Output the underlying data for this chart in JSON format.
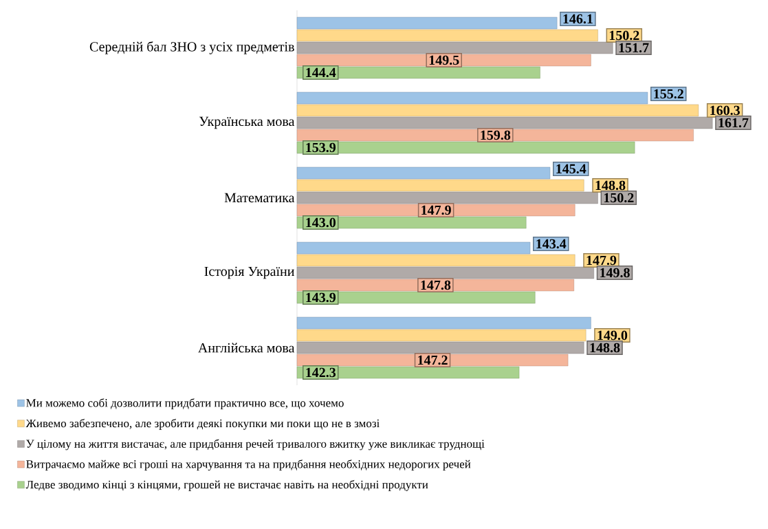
{
  "chart_data": {
    "type": "bar",
    "orientation": "horizontal",
    "categories": [
      "Середній бал ЗНО з усіх предметів",
      "Українська мова",
      "Математика",
      "Історія України",
      "Англійська мова"
    ],
    "series": [
      {
        "name": "Ми можемо собі дозволити придбати практично все, що хочемо",
        "color": "#9dc3e6",
        "values": [
          146.1,
          155.2,
          145.4,
          143.4,
          149.5
        ],
        "value_labels": [
          "146.1",
          "155.2",
          "145.4",
          "143.4",
          null
        ]
      },
      {
        "name": "Живемо забезпечено, але зробити деякі покупки ми поки що не в змозі",
        "color": "#ffd98a",
        "values": [
          150.2,
          160.3,
          148.8,
          147.9,
          149.0
        ],
        "value_labels": [
          "150.2",
          "160.3",
          "148.8",
          "147.9",
          "149.0"
        ]
      },
      {
        "name": "У цілому на життя вистачає, але придбання речей тривалого вжитку уже викликає труднощі",
        "color": "#b0aaa8",
        "values": [
          151.7,
          161.7,
          150.2,
          149.8,
          148.8
        ],
        "value_labels": [
          "151.7",
          "161.7",
          "150.2",
          "149.8",
          "148.8"
        ]
      },
      {
        "name": "Витрачаємо майже всі гроші на харчування та на придбання необхідних недорогих речей",
        "color": "#f4b59a",
        "values": [
          149.5,
          159.8,
          147.9,
          147.8,
          147.2
        ],
        "value_labels": [
          "149.5",
          "159.8",
          "147.9",
          "147.8",
          "147.2"
        ]
      },
      {
        "name": "Ледве  зводимо кінці з кінцями, грошей не вистачає навіть на необхідні продукти",
        "color": "#a9d18e",
        "values": [
          144.4,
          153.9,
          143.0,
          143.9,
          142.3
        ],
        "value_labels": [
          "144.4",
          "153.9",
          "143.0",
          "143.9",
          "142.3"
        ]
      }
    ],
    "xlim": [
      120,
      165
    ],
    "tick_labels": "y",
    "legend": "bottom"
  }
}
